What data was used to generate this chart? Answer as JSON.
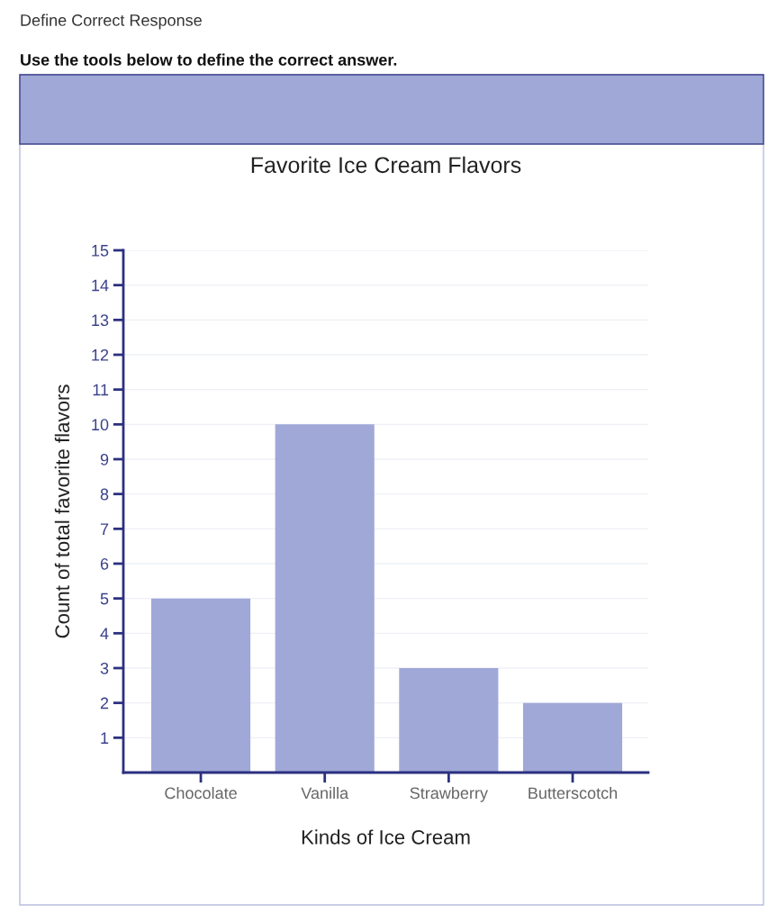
{
  "chart_data": {
    "type": "bar",
    "title": "Favorite Ice Cream Flavors",
    "xlabel": "Kinds of Ice Cream",
    "ylabel": "Count of total favorite flavors",
    "annotations": [
      "Define Correct Response",
      "Use the tools below to define the correct answer."
    ],
    "categories": [
      "Chocolate",
      "Vanilla",
      "Strawberry",
      "Butterscotch"
    ],
    "values": [
      5,
      10,
      3,
      2
    ],
    "color": "#a0a8d7",
    "ylim": [
      0,
      15
    ],
    "yticks": [
      1,
      2,
      3,
      4,
      5,
      6,
      7,
      8,
      9,
      10,
      11,
      12,
      13,
      14,
      15
    ],
    "grid": "y",
    "legend": false
  }
}
